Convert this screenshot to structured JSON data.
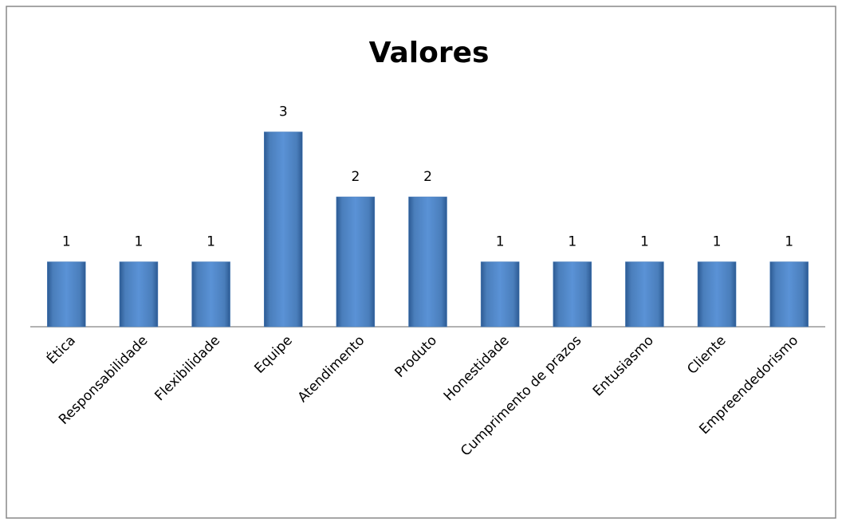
{
  "chart_data": {
    "type": "bar",
    "title": "Valores",
    "categories": [
      "Ética",
      "Responsabilidade",
      "Flexibilidade",
      "Equipe",
      "Atendimento",
      "Produto",
      "Honestidade",
      "Cumprimento de prazos",
      "Entusiasmo",
      "Cliente",
      "Empreendedorismo"
    ],
    "values": [
      1,
      1,
      1,
      3,
      2,
      2,
      1,
      1,
      1,
      1,
      1
    ],
    "color": "#4a7ebb"
  }
}
